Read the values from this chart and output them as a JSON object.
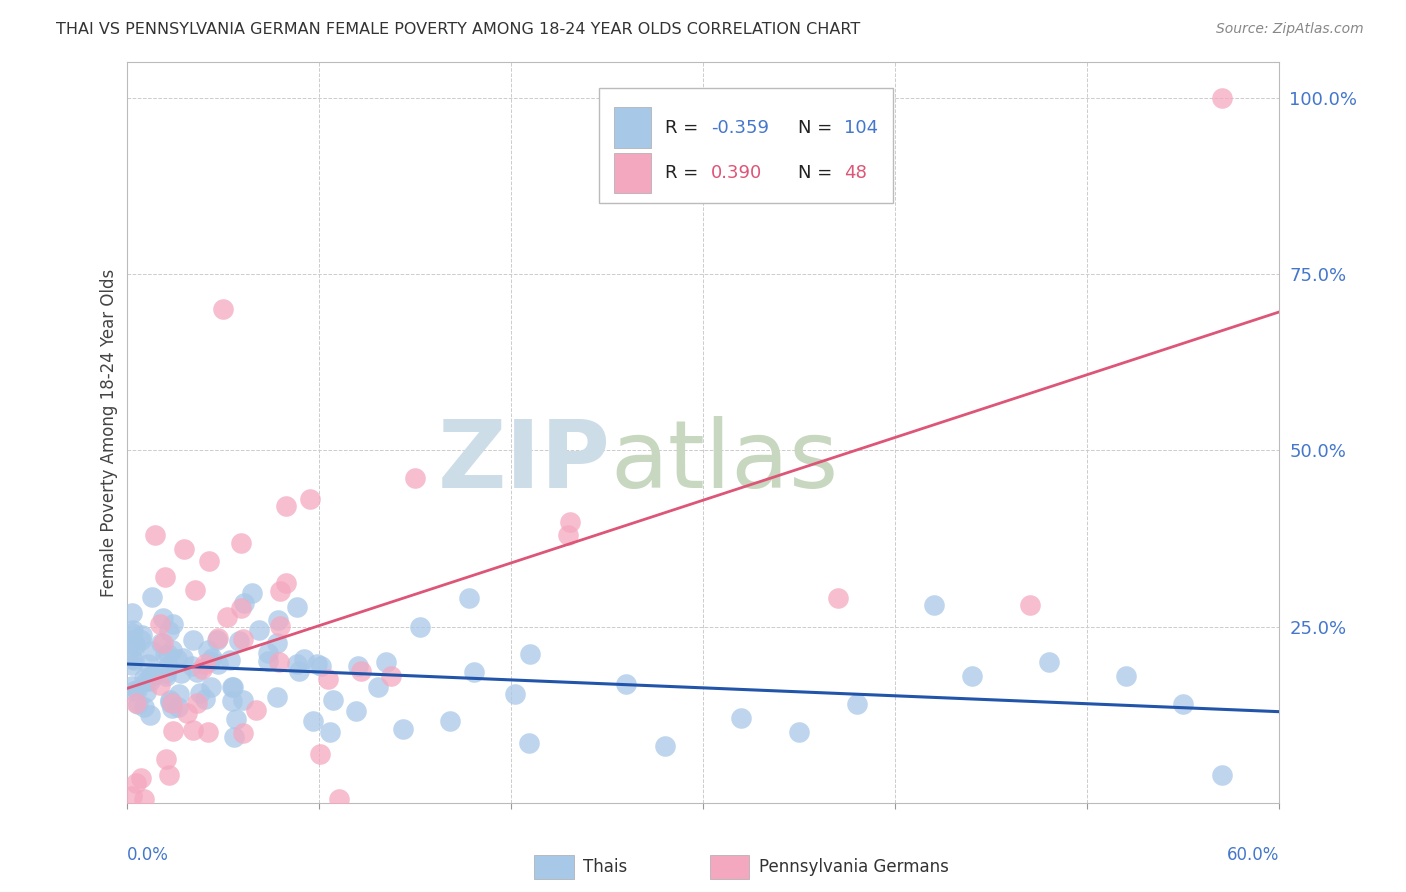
{
  "title": "THAI VS PENNSYLVANIA GERMAN FEMALE POVERTY AMONG 18-24 YEAR OLDS CORRELATION CHART",
  "source": "Source: ZipAtlas.com",
  "ylabel": "Female Poverty Among 18-24 Year Olds",
  "legend_r_blue": "-0.359",
  "legend_n_blue": "104",
  "legend_r_pink": "0.390",
  "legend_n_pink": "48",
  "blue_color": "#a8c8e8",
  "pink_color": "#f4a8c0",
  "blue_line_color": "#2255aa",
  "pink_line_color": "#dd5577",
  "watermark_zip": "ZIP",
  "watermark_atlas": "atlas",
  "watermark_color_zip": "#ccdde8",
  "watermark_color_atlas": "#c8d8c0",
  "grid_color": "#cccccc",
  "title_color": "#333333",
  "source_color": "#888888",
  "axis_label_color": "#4477cc",
  "bg_color": "#ffffff"
}
